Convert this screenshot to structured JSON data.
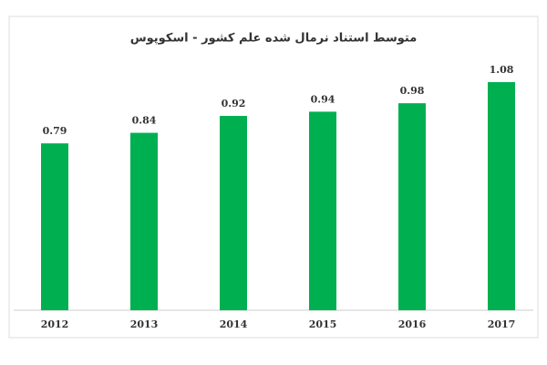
{
  "chart_data": {
    "type": "bar",
    "title": "متوسط استناد نرمال شده علم کشور - اسکوپوس",
    "categories": [
      "2012",
      "2013",
      "2014",
      "2015",
      "2016",
      "2017"
    ],
    "values": [
      0.79,
      0.84,
      0.92,
      0.94,
      0.98,
      1.08
    ],
    "color": "#00b050"
  }
}
